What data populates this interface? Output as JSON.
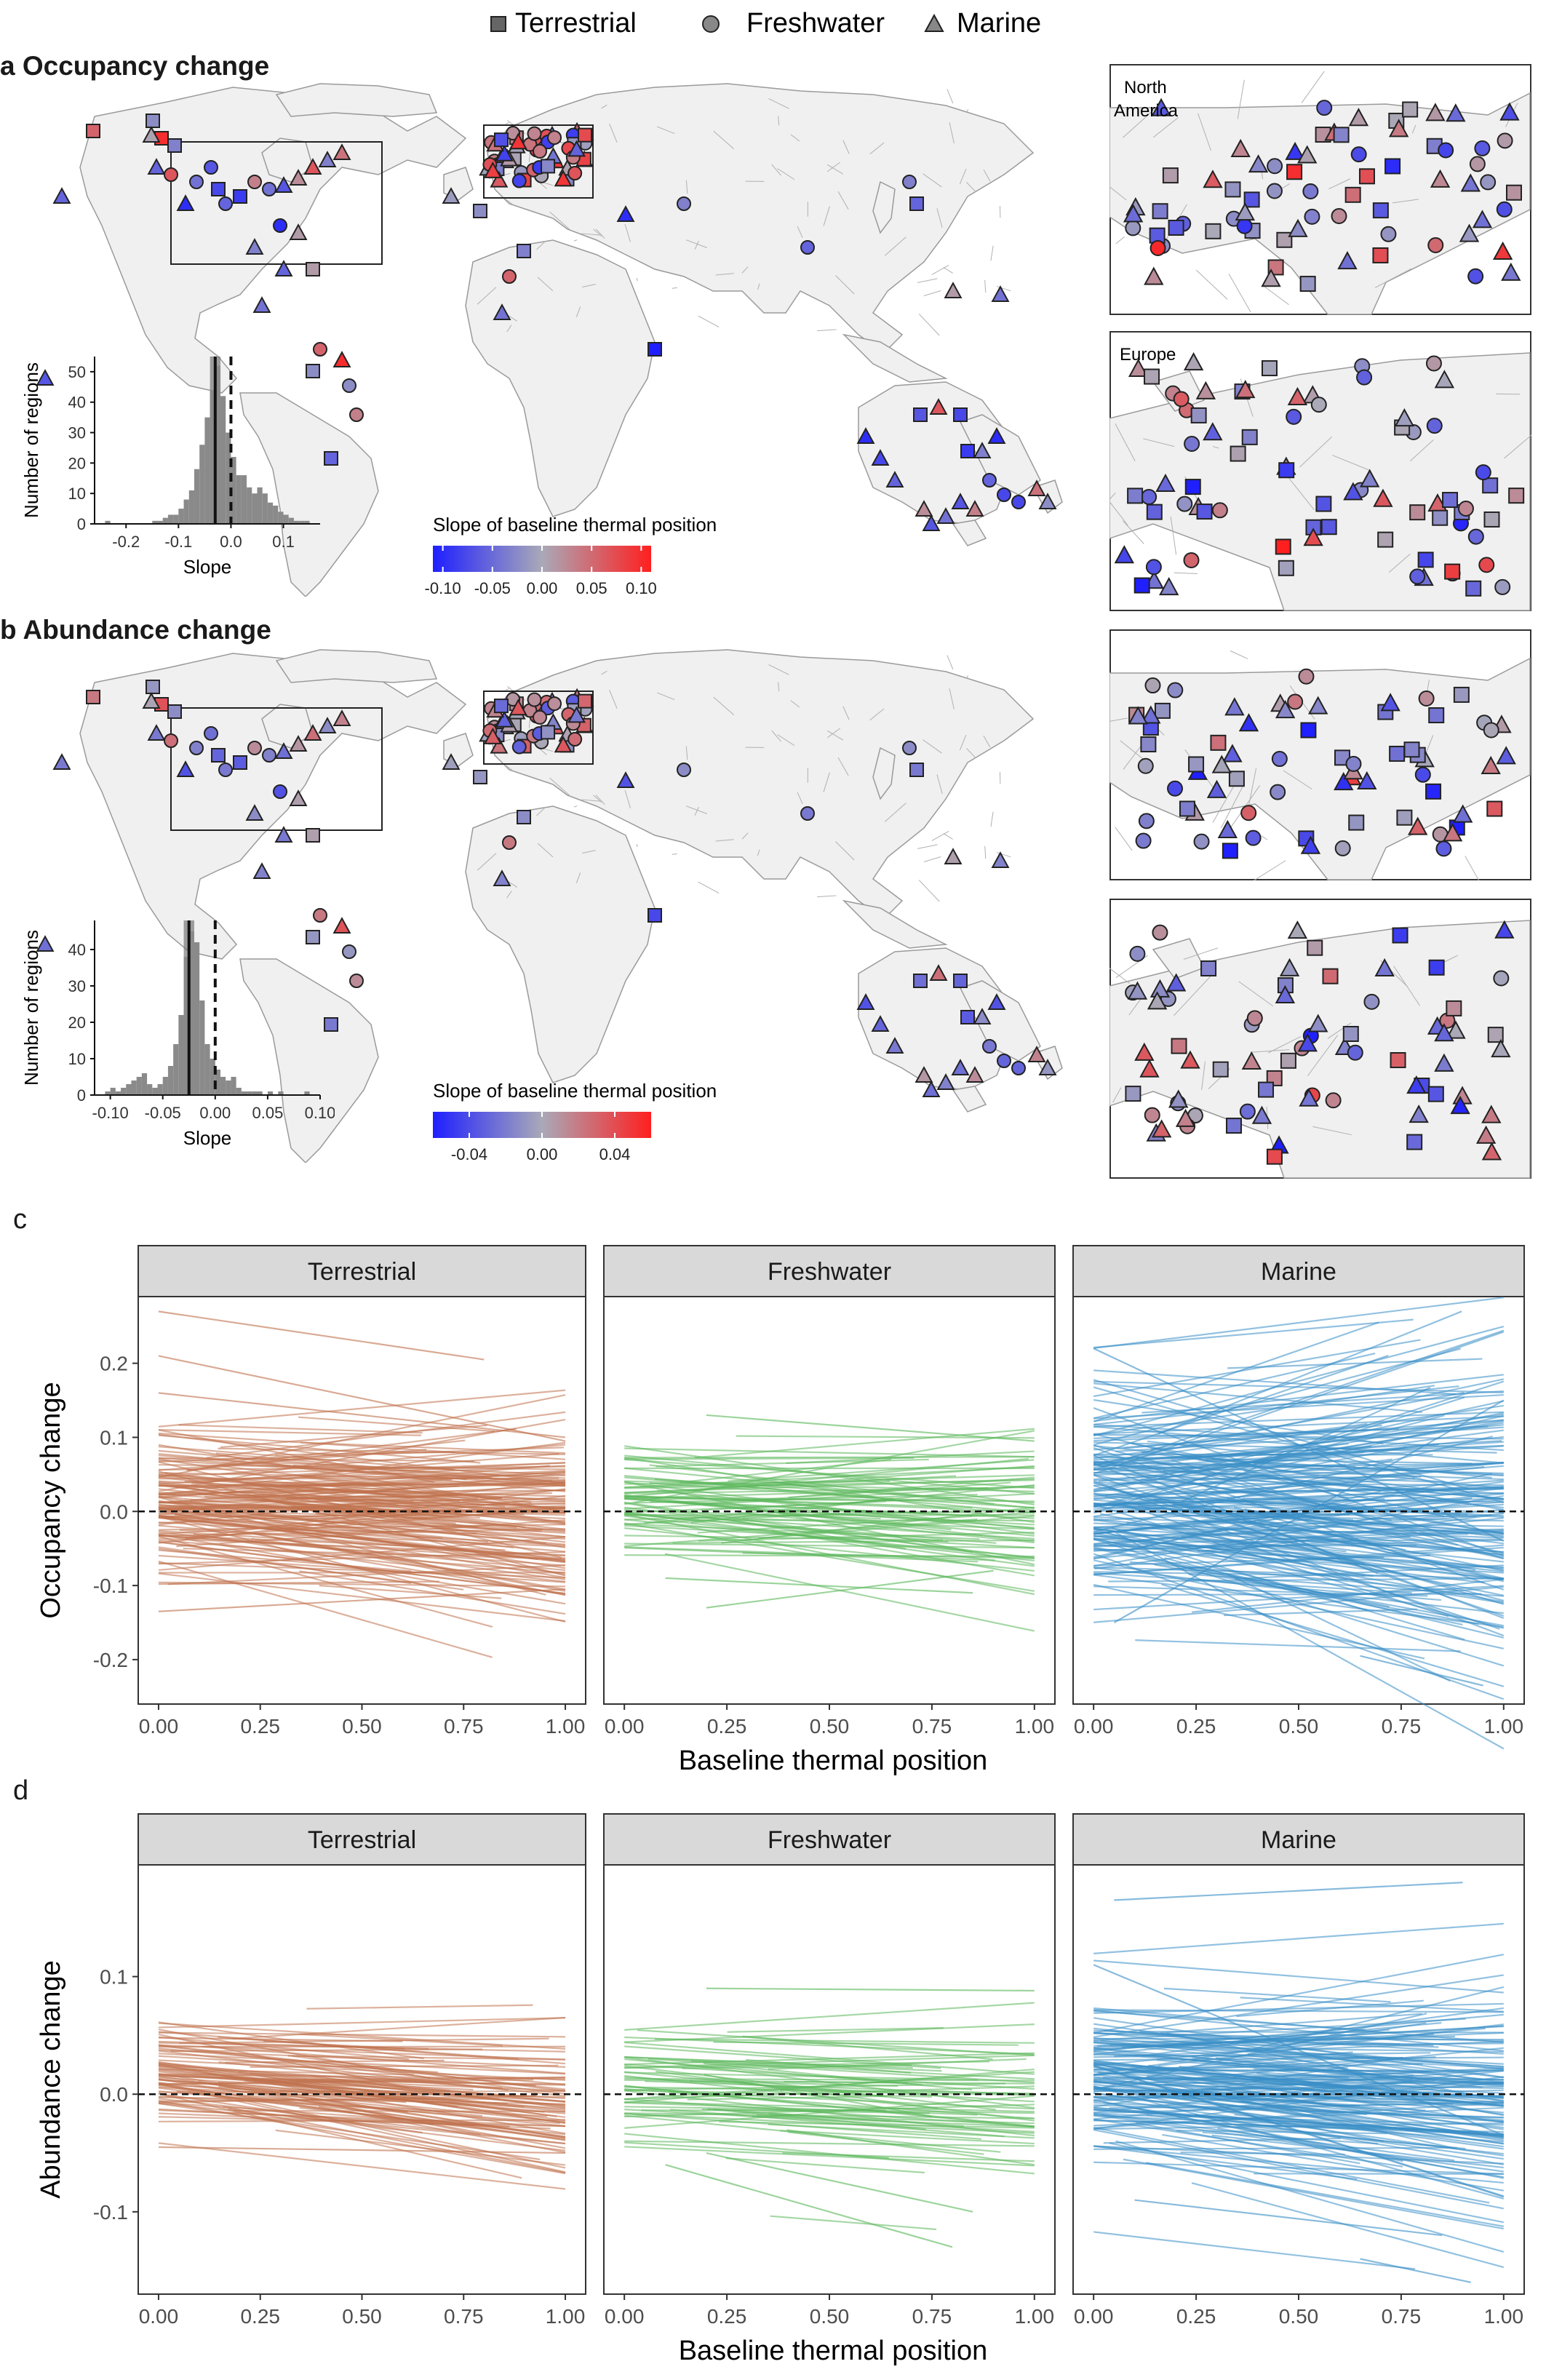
{
  "legend": {
    "items": [
      {
        "label": "Terrestrial",
        "shape": "square"
      },
      {
        "label": "Freshwater",
        "shape": "circle"
      },
      {
        "label": "Marine",
        "shape": "triangle"
      }
    ]
  },
  "panels": {
    "a_label": "a Occupancy change",
    "b_label": "b Abundance change",
    "c_label": "c",
    "d_label": "d"
  },
  "insets": {
    "north_america": "North America",
    "north_america_line1": "North",
    "north_america_line2": "America",
    "europe": "Europe"
  },
  "colorbar_a": {
    "title": "Slope of baseline thermal position",
    "ticks": [
      "-0.10",
      "-0.05",
      "0.00",
      "0.05",
      "0.10"
    ],
    "tick_values": [
      -0.1,
      -0.05,
      0.0,
      0.05,
      0.1
    ],
    "range": [
      -0.11,
      0.11
    ],
    "low_color": "#1f1fff",
    "mid_color": "#a9a9b8",
    "high_color": "#ff1f1f"
  },
  "colorbar_b": {
    "title": "Slope of baseline thermal position",
    "ticks": [
      "-0.04",
      "0.00",
      "0.04"
    ],
    "tick_values": [
      -0.04,
      0.0,
      0.04
    ],
    "range": [
      -0.06,
      0.06
    ],
    "low_color": "#1f1fff",
    "mid_color": "#a9a9b8",
    "high_color": "#ff1f1f"
  },
  "chart_data": [
    {
      "id": "hist_a",
      "type": "bar",
      "xlabel": "Slope",
      "ylabel": "Number of regions",
      "xticks": [
        "-0.2",
        "-0.1",
        "0.0",
        "0.1"
      ],
      "xtick_values": [
        -0.2,
        -0.1,
        0.0,
        0.1
      ],
      "yticks": [
        "0",
        "10",
        "20",
        "30",
        "40",
        "50"
      ],
      "ytick_values": [
        0,
        10,
        20,
        30,
        40,
        50
      ],
      "xlim": [
        -0.26,
        0.17
      ],
      "ylim": [
        0,
        55
      ],
      "bin_width": 0.01,
      "bin_starts": [
        -0.24,
        -0.23,
        -0.22,
        -0.21,
        -0.2,
        -0.19,
        -0.18,
        -0.17,
        -0.16,
        -0.15,
        -0.14,
        -0.13,
        -0.12,
        -0.11,
        -0.1,
        -0.09,
        -0.08,
        -0.07,
        -0.06,
        -0.05,
        -0.04,
        -0.03,
        -0.02,
        -0.01,
        0.0,
        0.01,
        0.02,
        0.03,
        0.04,
        0.05,
        0.06,
        0.07,
        0.08,
        0.09,
        0.1,
        0.11,
        0.12,
        0.13,
        0.14
      ],
      "counts": [
        1,
        0,
        0,
        0,
        0,
        0,
        0,
        0,
        0,
        1,
        1,
        2,
        3,
        3,
        5,
        8,
        11,
        18,
        26,
        35,
        44,
        52,
        42,
        30,
        22,
        16,
        16,
        12,
        10,
        12,
        10,
        7,
        6,
        4,
        3,
        2,
        1,
        1,
        1
      ],
      "reference_lines": [
        {
          "x": 0.0,
          "style": "dashed"
        },
        {
          "x": -0.03,
          "style": "solid"
        }
      ],
      "mean_band": [
        -0.04,
        -0.02
      ]
    },
    {
      "id": "hist_b",
      "type": "bar",
      "xlabel": "Slope",
      "ylabel": "Number of regions",
      "xticks": [
        "-0.10",
        "-0.05",
        "0.00",
        "0.05",
        "0.10"
      ],
      "xtick_values": [
        -0.1,
        -0.05,
        0.0,
        0.05,
        0.1
      ],
      "yticks": [
        "0",
        "10",
        "20",
        "30",
        "40"
      ],
      "ytick_values": [
        0,
        10,
        20,
        30,
        40
      ],
      "xlim": [
        -0.115,
        0.1
      ],
      "ylim": [
        0,
        48
      ],
      "bin_width": 0.005,
      "bin_starts": [
        -0.105,
        -0.1,
        -0.095,
        -0.09,
        -0.085,
        -0.08,
        -0.075,
        -0.07,
        -0.065,
        -0.06,
        -0.055,
        -0.05,
        -0.045,
        -0.04,
        -0.035,
        -0.03,
        -0.025,
        -0.02,
        -0.015,
        -0.01,
        -0.005,
        0.0,
        0.005,
        0.01,
        0.015,
        0.02,
        0.025,
        0.03,
        0.035,
        0.04,
        0.045,
        0.05,
        0.055,
        0.06,
        0.065,
        0.07,
        0.075,
        0.08,
        0.085
      ],
      "counts": [
        1,
        2,
        1,
        2,
        3,
        4,
        5,
        6,
        3,
        2,
        3,
        5,
        8,
        14,
        22,
        38,
        45,
        42,
        26,
        14,
        10,
        7,
        5,
        4,
        5,
        2,
        1,
        1,
        1,
        1,
        0,
        1,
        0,
        1,
        0,
        0,
        0,
        0,
        1
      ],
      "reference_lines": [
        {
          "x": 0.0,
          "style": "dashed"
        },
        {
          "x": -0.025,
          "style": "solid"
        }
      ],
      "mean_band": [
        -0.03,
        -0.02
      ]
    },
    {
      "id": "panel_c",
      "type": "line",
      "title": "",
      "xlabel": "Baseline thermal position",
      "ylabel": "Occupancy change",
      "xticks": [
        "0.00",
        "0.25",
        "0.50",
        "0.75",
        "1.00"
      ],
      "xtick_values": [
        0.0,
        0.25,
        0.5,
        0.75,
        1.0
      ],
      "yticks": [
        "-0.2",
        "-0.1",
        "0.0",
        "0.1",
        "0.2"
      ],
      "ytick_values": [
        -0.2,
        -0.1,
        0.0,
        0.1,
        0.2
      ],
      "xlim": [
        -0.05,
        1.05
      ],
      "ylim": [
        -0.26,
        0.29
      ],
      "facets": [
        {
          "name": "Terrestrial",
          "color": "#c0724e",
          "line_count": 180,
          "mean_intercept": 0.015,
          "mean_slope": -0.02,
          "sd_intercept": 0.045,
          "sd_slope": 0.05,
          "highlighted": [
            {
              "x": [
                0.0,
                0.8
              ],
              "y": [
                0.27,
                0.205
              ]
            },
            {
              "x": [
                0.0,
                1.0
              ],
              "y": [
                0.21,
                0.095
              ]
            },
            {
              "x": [
                0.0,
                1.0
              ],
              "y": [
                0.16,
                0.1
              ]
            },
            {
              "x": [
                0.0,
                1.0
              ],
              "y": [
                -0.135,
                -0.105
              ]
            }
          ]
        },
        {
          "name": "Freshwater",
          "color": "#5cb85c",
          "line_count": 90,
          "mean_intercept": 0.02,
          "mean_slope": -0.01,
          "sd_intercept": 0.035,
          "sd_slope": 0.04,
          "highlighted": [
            {
              "x": [
                0.2,
                1.0
              ],
              "y": [
                0.13,
                0.095
              ]
            },
            {
              "x": [
                0.1,
                0.85
              ],
              "y": [
                -0.09,
                -0.11
              ]
            },
            {
              "x": [
                0.2,
                0.9
              ],
              "y": [
                -0.13,
                -0.08
              ]
            }
          ]
        },
        {
          "name": "Marine",
          "color": "#3a8fc7",
          "line_count": 230,
          "mean_intercept": 0.01,
          "mean_slope": -0.01,
          "sd_intercept": 0.07,
          "sd_slope": 0.09,
          "highlighted": [
            {
              "x": [
                0.0,
                1.0
              ],
              "y": [
                0.22,
                -0.04
              ]
            },
            {
              "x": [
                0.65,
                0.95
              ],
              "y": [
                -0.195,
                -0.235
              ]
            },
            {
              "x": [
                0.05,
                1.0
              ],
              "y": [
                -0.15,
                0.15
              ]
            }
          ]
        }
      ]
    },
    {
      "id": "panel_d",
      "type": "line",
      "title": "",
      "xlabel": "Baseline thermal position",
      "ylabel": "Abundance change",
      "xticks": [
        "0.00",
        "0.25",
        "0.50",
        "0.75",
        "1.00"
      ],
      "xtick_values": [
        0.0,
        0.25,
        0.5,
        0.75,
        1.0
      ],
      "yticks": [
        "-0.1",
        "0.0",
        "0.1"
      ],
      "ytick_values": [
        -0.1,
        0.0,
        0.1
      ],
      "xlim": [
        -0.05,
        1.05
      ],
      "ylim": [
        -0.17,
        0.195
      ],
      "facets": [
        {
          "name": "Terrestrial",
          "color": "#c0724e",
          "line_count": 110,
          "mean_intercept": 0.018,
          "mean_slope": -0.03,
          "sd_intercept": 0.022,
          "sd_slope": 0.022,
          "highlighted": [
            {
              "x": [
                0.0,
                0.6
              ],
              "y": [
                0.048,
                0.045
              ]
            },
            {
              "x": [
                0.0,
                1.0
              ],
              "y": [
                -0.045,
                -0.05
              ]
            }
          ]
        },
        {
          "name": "Freshwater",
          "color": "#5cb85c",
          "line_count": 80,
          "mean_intercept": 0.005,
          "mean_slope": -0.015,
          "sd_intercept": 0.03,
          "sd_slope": 0.02,
          "highlighted": [
            {
              "x": [
                0.2,
                1.0
              ],
              "y": [
                0.09,
                0.088
              ]
            },
            {
              "x": [
                0.1,
                0.8
              ],
              "y": [
                -0.06,
                -0.13
              ]
            },
            {
              "x": [
                0.2,
                0.85
              ],
              "y": [
                -0.05,
                -0.1
              ]
            }
          ]
        },
        {
          "name": "Marine",
          "color": "#3a8fc7",
          "line_count": 190,
          "mean_intercept": 0.012,
          "mean_slope": -0.015,
          "sd_intercept": 0.035,
          "sd_slope": 0.035,
          "highlighted": [
            {
              "x": [
                0.05,
                0.9
              ],
              "y": [
                0.165,
                0.18
              ]
            },
            {
              "x": [
                0.0,
                1.0
              ],
              "y": [
                0.11,
                -0.035
              ]
            },
            {
              "x": [
                0.1,
                0.85
              ],
              "y": [
                -0.09,
                -0.12
              ]
            },
            {
              "x": [
                0.65,
                0.92
              ],
              "y": [
                -0.14,
                -0.16
              ]
            }
          ]
        }
      ]
    }
  ]
}
